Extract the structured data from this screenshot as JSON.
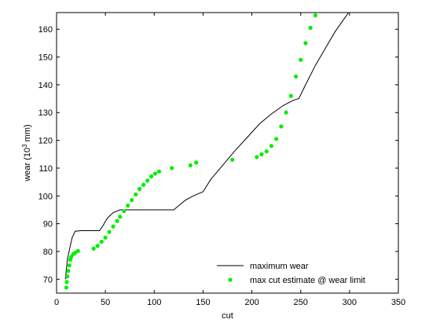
{
  "chart_data": {
    "type": "line",
    "xlabel": "cut",
    "ylabel_main": "wear (10",
    "ylabel_sup": "3",
    "ylabel_tail": " mm)",
    "xlim": [
      0,
      350
    ],
    "ylim": [
      65,
      166
    ],
    "xticks": [
      0,
      50,
      100,
      150,
      200,
      250,
      300,
      350
    ],
    "yticks": [
      70,
      80,
      90,
      100,
      110,
      120,
      130,
      140,
      150,
      160
    ],
    "grid": false,
    "legend_position": "lower-right",
    "series": [
      {
        "name": "maximum wear",
        "style": "line",
        "color": "#000000",
        "points": [
          [
            9,
            70
          ],
          [
            11,
            77
          ],
          [
            14,
            82
          ],
          [
            16,
            85
          ],
          [
            19,
            87.3
          ],
          [
            25,
            87.5
          ],
          [
            44,
            87.5
          ],
          [
            47,
            89
          ],
          [
            52,
            92
          ],
          [
            58,
            94
          ],
          [
            65,
            95
          ],
          [
            80,
            95
          ],
          [
            100,
            95
          ],
          [
            120,
            95
          ],
          [
            125,
            96.5
          ],
          [
            132,
            98.5
          ],
          [
            140,
            100
          ],
          [
            150,
            101.5
          ],
          [
            158,
            106
          ],
          [
            170,
            111
          ],
          [
            182,
            116
          ],
          [
            195,
            121
          ],
          [
            208,
            126
          ],
          [
            220,
            129.5
          ],
          [
            232,
            132.5
          ],
          [
            243,
            134.5
          ],
          [
            248,
            135
          ],
          [
            255,
            140
          ],
          [
            265,
            147
          ],
          [
            275,
            153
          ],
          [
            285,
            159
          ],
          [
            295,
            164
          ],
          [
            299,
            166
          ]
        ]
      },
      {
        "name": "max cut estimate @ wear limit",
        "style": "marker",
        "color": "#00ee00",
        "points": [
          [
            10,
            67
          ],
          [
            10.5,
            69
          ],
          [
            11,
            71
          ],
          [
            12,
            73
          ],
          [
            13,
            75
          ],
          [
            14,
            77
          ],
          [
            15,
            78
          ],
          [
            17,
            79
          ],
          [
            19,
            79.5
          ],
          [
            22,
            80.2
          ],
          [
            38,
            81
          ],
          [
            42,
            82
          ],
          [
            46,
            83.5
          ],
          [
            50,
            85
          ],
          [
            54,
            87
          ],
          [
            58,
            89
          ],
          [
            62,
            91
          ],
          [
            65,
            92.5
          ],
          [
            69,
            94.5
          ],
          [
            73,
            96.5
          ],
          [
            77,
            98.5
          ],
          [
            81,
            100.5
          ],
          [
            85,
            102.5
          ],
          [
            89,
            104
          ],
          [
            93,
            105.5
          ],
          [
            97,
            107
          ],
          [
            101,
            108
          ],
          [
            105,
            108.8
          ],
          [
            118,
            110
          ],
          [
            137,
            111
          ],
          [
            143,
            112
          ],
          [
            180,
            113
          ],
          [
            205,
            114
          ],
          [
            210,
            115
          ],
          [
            215,
            116
          ],
          [
            220,
            118
          ],
          [
            225,
            120.5
          ],
          [
            230,
            125
          ],
          [
            235,
            130
          ],
          [
            240,
            136
          ],
          [
            245,
            143
          ],
          [
            250,
            149
          ],
          [
            255,
            155
          ],
          [
            260,
            160.5
          ],
          [
            265,
            165
          ]
        ]
      }
    ]
  }
}
